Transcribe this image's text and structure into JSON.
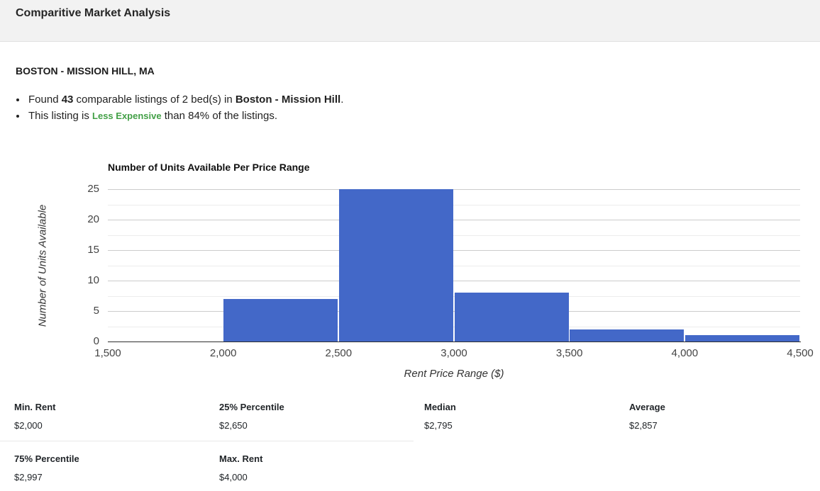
{
  "header": {
    "title": "Comparitive Market Analysis"
  },
  "section": {
    "heading": "BOSTON - MISSION HILL, MA",
    "bullet1": {
      "pre": "Found ",
      "count": "43",
      "mid": " comparable listings of 2 bed(s) in ",
      "place": "Boston - Mission Hill",
      "post": "."
    },
    "bullet2": {
      "pre": "This listing is ",
      "comparison": "Less Expensive",
      "post": " than 84% of the listings."
    },
    "comparison_color": "#43a047"
  },
  "chart_data": {
    "type": "bar",
    "title": "Number of Units Available Per Price Range",
    "xlabel": "Rent Price Range ($)",
    "ylabel": "Number of Units Available",
    "xlim": [
      1500,
      4500
    ],
    "ylim": [
      0,
      25
    ],
    "grid": true,
    "legend": "none",
    "x_tick_values": [
      1500,
      2000,
      2500,
      3000,
      3500,
      4000,
      4500
    ],
    "x_tick_labels": [
      "1,500",
      "2,000",
      "2,500",
      "3,000",
      "3,500",
      "4,000",
      "4,500"
    ],
    "y_ticks": [
      0,
      5,
      10,
      15,
      20,
      25
    ],
    "minor_y_ticks": [
      2.5,
      7.5,
      12.5,
      17.5,
      22.5
    ],
    "buckets": [
      {
        "range": [
          1500,
          2000
        ],
        "count": 0
      },
      {
        "range": [
          2000,
          2500
        ],
        "count": 7
      },
      {
        "range": [
          2500,
          3000
        ],
        "count": 25
      },
      {
        "range": [
          3000,
          3500
        ],
        "count": 8
      },
      {
        "range": [
          3500,
          4000
        ],
        "count": 2
      },
      {
        "range": [
          4000,
          4500
        ],
        "count": 1
      }
    ],
    "bar_color": "#4368c8",
    "gridline_color": "#cccccc",
    "minor_gridline_color": "#ececec",
    "axis_line_color": "#2e2e2e"
  },
  "stats": {
    "items": [
      {
        "label": "Min. Rent",
        "value": "$2,000"
      },
      {
        "label": "25% Percentile",
        "value": "$2,650"
      },
      {
        "label": "Median",
        "value": "$2,795"
      },
      {
        "label": "Average",
        "value": "$2,857"
      },
      {
        "label": "75% Percentile",
        "value": "$2,997"
      },
      {
        "label": "Max. Rent",
        "value": "$4,000"
      }
    ]
  }
}
